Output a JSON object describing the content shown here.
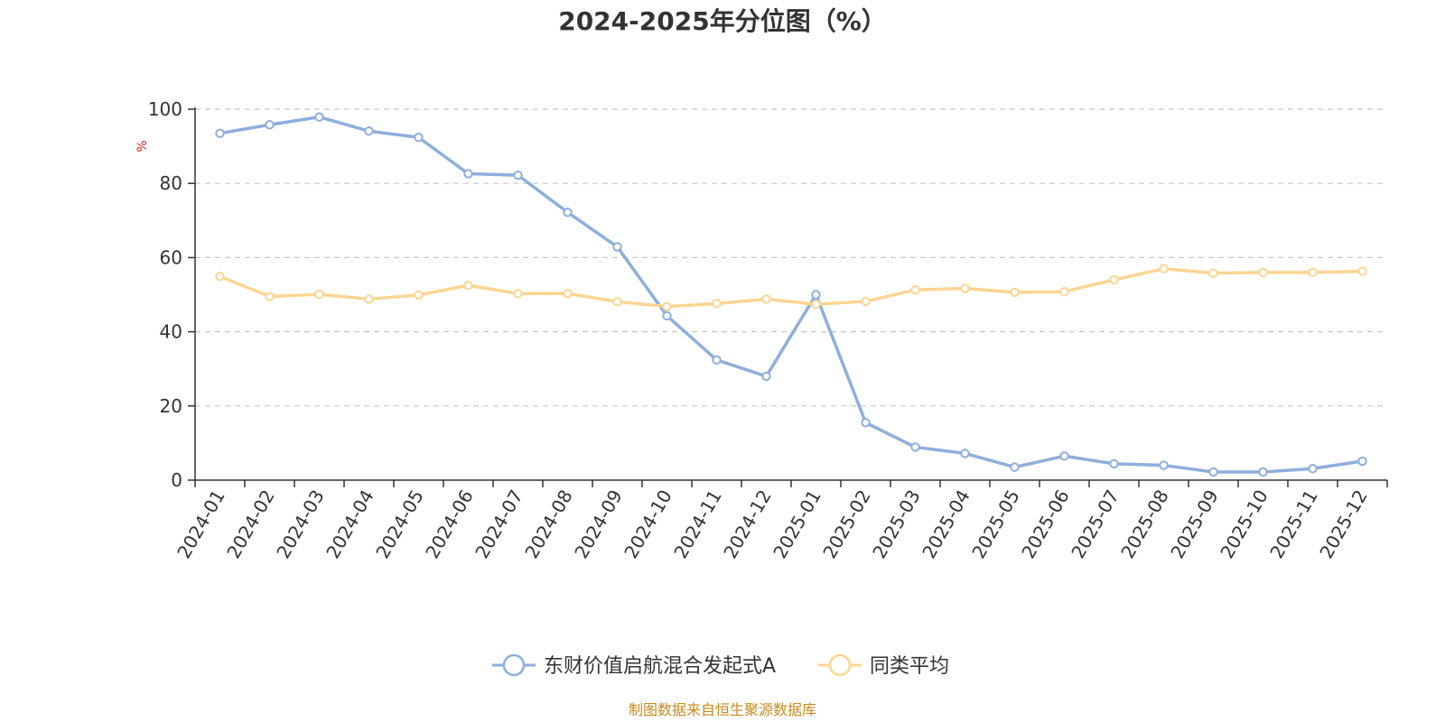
{
  "chart_data": {
    "type": "line",
    "title": "2024-2025年分位图（%）",
    "ylabel": "%",
    "xlabel": "",
    "ylim": [
      0,
      100
    ],
    "yticks": [
      0,
      20,
      40,
      60,
      80,
      100
    ],
    "grid": true,
    "legend_position": "bottom-center",
    "categories": [
      "2024-01",
      "2024-02",
      "2024-03",
      "2024-04",
      "2024-05",
      "2024-06",
      "2024-07",
      "2024-08",
      "2024-09",
      "2024-10",
      "2024-11",
      "2024-12",
      "2025-01",
      "2025-02",
      "2025-03",
      "2025-04",
      "2025-05",
      "2025-06",
      "2025-07",
      "2025-08",
      "2025-09",
      "2025-10",
      "2025-11",
      "2025-12"
    ],
    "series": [
      {
        "name": "东财价值启航混合发起式A",
        "color": "#8eaedc",
        "values": [
          93.5,
          95.8,
          97.9,
          94.1,
          92.4,
          82.6,
          82.2,
          72.2,
          62.9,
          44.3,
          32.4,
          28.0,
          50.0,
          15.5,
          8.9,
          7.2,
          3.5,
          6.5,
          4.4,
          4.0,
          2.2,
          2.2,
          3.1,
          5.1
        ]
      },
      {
        "name": "同类平均",
        "color": "#fcd592",
        "values": [
          54.9,
          49.5,
          50.1,
          48.8,
          49.9,
          52.5,
          50.3,
          50.3,
          48.1,
          46.8,
          47.6,
          48.8,
          47.4,
          48.2,
          51.3,
          51.7,
          50.6,
          50.8,
          54.0,
          57.0,
          55.8,
          56.0,
          56.0,
          56.3
        ]
      }
    ]
  },
  "footer": {
    "source": "制图数据来自恒生聚源数据库"
  }
}
